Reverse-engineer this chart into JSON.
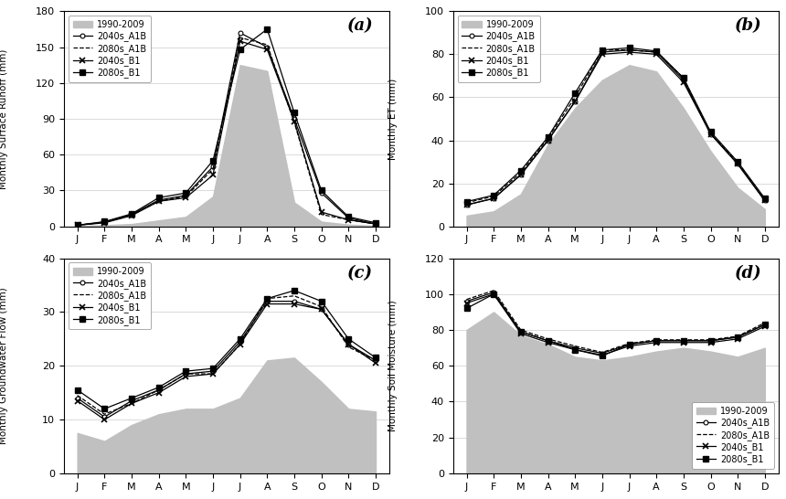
{
  "months": [
    "J",
    "F",
    "M",
    "A",
    "M",
    "J",
    "J",
    "A",
    "S",
    "O",
    "N",
    "D"
  ],
  "panel_a": {
    "title": "(a)",
    "ylabel": "Monthly Surface Runoff (mm)",
    "ylim": [
      0,
      180
    ],
    "yticks": [
      0,
      30,
      60,
      90,
      120,
      150,
      180
    ],
    "baseline": [
      0.5,
      1.0,
      2.0,
      5.0,
      8.0,
      25.0,
      135.0,
      130.0,
      20.0,
      4.0,
      1.5,
      0.5
    ],
    "s2040_A1B": [
      1.0,
      3.5,
      10.0,
      22.0,
      26.0,
      50.0,
      162.0,
      150.0,
      90.0,
      28.0,
      7.0,
      2.0
    ],
    "s2080_A1B": [
      1.0,
      3.5,
      9.5,
      21.0,
      25.0,
      48.0,
      158.0,
      152.0,
      87.0,
      10.0,
      5.5,
      2.0
    ],
    "s2040_B1": [
      1.0,
      3.0,
      9.0,
      21.0,
      24.0,
      43.0,
      155.0,
      148.0,
      88.0,
      12.0,
      5.5,
      2.0
    ],
    "s2080_B1": [
      1.0,
      4.0,
      10.5,
      24.0,
      28.0,
      55.0,
      148.0,
      165.0,
      95.0,
      30.0,
      8.0,
      3.0
    ]
  },
  "panel_b": {
    "title": "(b)",
    "ylabel": "Monthly ET (mm)",
    "ylim": [
      0,
      100
    ],
    "yticks": [
      0,
      20,
      40,
      60,
      80,
      100
    ],
    "baseline": [
      5.0,
      7.0,
      15.0,
      38.0,
      55.0,
      68.0,
      75.0,
      72.0,
      55.0,
      35.0,
      18.0,
      8.0
    ],
    "s2040_A1B": [
      10.0,
      13.0,
      24.0,
      40.0,
      58.0,
      81.0,
      82.0,
      81.0,
      68.0,
      43.0,
      29.0,
      12.0
    ],
    "s2080_A1B": [
      11.0,
      14.0,
      25.0,
      41.0,
      60.0,
      82.0,
      82.0,
      81.0,
      69.0,
      43.0,
      30.0,
      12.0
    ],
    "s2040_B1": [
      10.0,
      13.0,
      24.0,
      40.0,
      58.0,
      80.0,
      81.0,
      80.0,
      67.0,
      43.0,
      29.0,
      12.0
    ],
    "s2080_B1": [
      11.5,
      14.5,
      26.0,
      41.5,
      62.0,
      82.0,
      83.0,
      81.5,
      69.0,
      44.0,
      30.0,
      13.0
    ]
  },
  "panel_c": {
    "title": "(c)",
    "ylabel": "Monthly Groundwater Flow (mm)",
    "ylim": [
      0,
      40
    ],
    "yticks": [
      0,
      10,
      20,
      30,
      40
    ],
    "baseline": [
      7.5,
      6.0,
      9.0,
      11.0,
      12.0,
      12.0,
      14.0,
      21.0,
      21.5,
      17.0,
      12.0,
      11.5
    ],
    "s2040_A1B": [
      14.0,
      10.5,
      13.5,
      15.5,
      18.5,
      19.0,
      24.5,
      32.0,
      32.0,
      30.5,
      24.0,
      21.0
    ],
    "s2080_A1B": [
      14.5,
      11.0,
      13.0,
      15.5,
      18.5,
      18.5,
      24.0,
      32.5,
      33.0,
      31.0,
      23.5,
      21.0
    ],
    "s2040_B1": [
      13.5,
      10.0,
      13.0,
      15.0,
      18.0,
      18.5,
      24.0,
      31.5,
      31.5,
      30.5,
      24.0,
      20.5
    ],
    "s2080_B1": [
      15.5,
      12.0,
      14.0,
      16.0,
      19.0,
      19.5,
      25.0,
      32.5,
      34.0,
      32.0,
      25.0,
      21.5
    ]
  },
  "panel_d": {
    "title": "(d)",
    "ylabel": "Monthly Soil Moisture (mm)",
    "ylim": [
      0,
      120
    ],
    "yticks": [
      0,
      20,
      40,
      60,
      80,
      100,
      120
    ],
    "baseline": [
      80.0,
      90.0,
      77.0,
      72.0,
      65.0,
      63.0,
      65.0,
      68.0,
      70.0,
      68.0,
      65.0,
      70.0
    ],
    "s2040_A1B": [
      96.0,
      101.0,
      79.0,
      74.0,
      70.0,
      67.0,
      72.0,
      74.0,
      74.0,
      74.0,
      76.0,
      83.0
    ],
    "s2080_A1B": [
      97.0,
      102.0,
      80.0,
      75.0,
      71.0,
      67.5,
      72.5,
      74.5,
      74.5,
      74.5,
      76.5,
      84.0
    ],
    "s2040_B1": [
      95.0,
      100.0,
      78.0,
      73.0,
      69.0,
      66.0,
      71.0,
      73.0,
      73.0,
      73.0,
      75.0,
      82.0
    ],
    "s2080_B1": [
      92.0,
      100.0,
      79.0,
      74.0,
      69.0,
      65.5,
      72.0,
      74.0,
      74.0,
      74.0,
      76.0,
      83.0
    ]
  },
  "legend_labels": [
    "1990-2009",
    "2040s_A1B",
    "2080s_A1B",
    "2040s_B1",
    "2080s_B1"
  ],
  "fill_color": "#c0c0c0",
  "line_color": "#000000"
}
